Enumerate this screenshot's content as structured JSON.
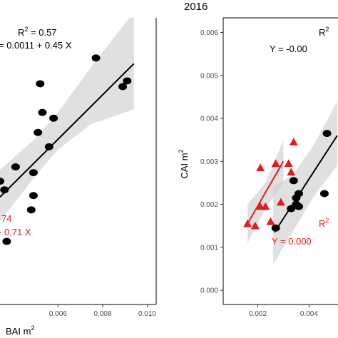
{
  "chart_data": [
    {
      "type": "scatter",
      "title": "",
      "xlabel": "BAI m",
      "xlabel_sup": "2",
      "ylabel": "",
      "x_ticks": [
        {
          "value": 0.006,
          "label": "0.006"
        },
        {
          "value": 0.008,
          "label": "0.008"
        },
        {
          "value": 0.01,
          "label": "0.010"
        }
      ],
      "xlim": [
        0.0034,
        0.0104
      ],
      "ylim": [
        0.0,
        1.0
      ],
      "grid": false,
      "colors": {
        "black_series": "#000000",
        "red_series": "#e41a1c",
        "band": "#cccccc"
      },
      "annotations": {
        "black_r2_prefix": "R",
        "black_r2_sup": "2",
        "black_r2_value": " = 0.57",
        "black_equation": "= 0.0011 + 0.45 X",
        "red_r2_fragment": "74",
        "red_equation": "- 0.71 X"
      },
      "series": [
        {
          "marker": "circle",
          "color": "#000000",
          "points": [
            {
              "x": 0.0034,
              "y": 0.43
            },
            {
              "x": 0.0036,
              "y": 0.4
            },
            {
              "x": 0.0037,
              "y": 0.22
            },
            {
              "x": 0.0041,
              "y": 0.48
            },
            {
              "x": 0.0049,
              "y": 0.46
            },
            {
              "x": 0.0048,
              "y": 0.33
            },
            {
              "x": 0.0049,
              "y": 0.38
            },
            {
              "x": 0.0051,
              "y": 0.6
            },
            {
              "x": 0.0052,
              "y": 0.77
            },
            {
              "x": 0.0053,
              "y": 0.67
            },
            {
              "x": 0.0056,
              "y": 0.55
            },
            {
              "x": 0.0058,
              "y": 0.65
            },
            {
              "x": 0.0077,
              "y": 0.86
            },
            {
              "x": 0.0089,
              "y": 0.76
            },
            {
              "x": 0.0091,
              "y": 0.78
            }
          ],
          "fit": {
            "x0": 0.0034,
            "y0": 0.375,
            "x1": 0.0094,
            "y1": 0.84
          },
          "band": {
            "upper": [
              {
                "x": 0.0034,
                "y": 0.47
              },
              {
                "x": 0.005,
                "y": 0.58
              },
              {
                "x": 0.006,
                "y": 0.67
              },
              {
                "x": 0.0075,
                "y": 0.83
              },
              {
                "x": 0.0094,
                "y": 1.02
              }
            ],
            "lower": [
              {
                "x": 0.0034,
                "y": 0.29
              },
              {
                "x": 0.005,
                "y": 0.45
              },
              {
                "x": 0.006,
                "y": 0.54
              },
              {
                "x": 0.0075,
                "y": 0.63
              },
              {
                "x": 0.0094,
                "y": 0.68
              }
            ]
          }
        }
      ]
    },
    {
      "type": "scatter",
      "title": "2016",
      "xlabel": "",
      "ylabel": "CAI m",
      "ylabel_sup": "2",
      "x_ticks": [
        {
          "value": 0.002,
          "label": "0.002"
        },
        {
          "value": 0.004,
          "label": "0.004"
        }
      ],
      "y_ticks": [
        {
          "value": 0.0,
          "label": "0.000"
        },
        {
          "value": 0.001,
          "label": "0.001"
        },
        {
          "value": 0.002,
          "label": "0.002"
        },
        {
          "value": 0.003,
          "label": "0.003"
        },
        {
          "value": 0.004,
          "label": "0.004"
        },
        {
          "value": 0.005,
          "label": "0.005"
        },
        {
          "value": 0.006,
          "label": "0.006"
        }
      ],
      "xlim": [
        0.00065,
        0.00513
      ],
      "ylim": [
        -0.00033,
        0.00634
      ],
      "grid": false,
      "colors": {
        "black_series": "#000000",
        "red_series": "#e41a1c",
        "band": "#cccccc"
      },
      "annotations": {
        "black_r2_prefix": "R",
        "black_r2_sup": "2",
        "black_equation": "Y = -0.00",
        "red_r2_prefix": "R",
        "red_r2_sup": "2",
        "red_equation": "Y = 0.000"
      },
      "series": [
        {
          "marker": "circle",
          "color": "#000000",
          "points": [
            {
              "x": 0.0027,
              "y": 0.00145
            },
            {
              "x": 0.0033,
              "y": 0.0019
            },
            {
              "x": 0.0035,
              "y": 0.002
            },
            {
              "x": 0.0036,
              "y": 0.00195
            },
            {
              "x": 0.0035,
              "y": 0.00215
            },
            {
              "x": 0.0034,
              "y": 0.00255
            },
            {
              "x": 0.0036,
              "y": 0.00225
            },
            {
              "x": 0.0046,
              "y": 0.00225
            },
            {
              "x": 0.0047,
              "y": 0.00365
            }
          ],
          "fit": {
            "x0": 0.00265,
            "y0": 0.00135,
            "x1": 0.0051,
            "y1": 0.0036
          },
          "band": {
            "upper": [
              {
                "x": 0.0026,
                "y": 0.0024
              },
              {
                "x": 0.0034,
                "y": 0.0027
              },
              {
                "x": 0.0042,
                "y": 0.0034
              },
              {
                "x": 0.0051,
                "y": 0.0044
              }
            ],
            "lower": [
              {
                "x": 0.0026,
                "y": 0.0006
              },
              {
                "x": 0.0034,
                "y": 0.0014
              },
              {
                "x": 0.0042,
                "y": 0.0022
              },
              {
                "x": 0.0051,
                "y": 0.0029
              }
            ]
          }
        },
        {
          "marker": "triangle",
          "color": "#e41a1c",
          "points": [
            {
              "x": 0.0016,
              "y": 0.00155
            },
            {
              "x": 0.0019,
              "y": 0.0015
            },
            {
              "x": 0.0021,
              "y": 0.00195
            },
            {
              "x": 0.0023,
              "y": 0.00195
            },
            {
              "x": 0.0025,
              "y": 0.0016
            },
            {
              "x": 0.0029,
              "y": 0.00205
            },
            {
              "x": 0.0021,
              "y": 0.00285
            },
            {
              "x": 0.0027,
              "y": 0.00295
            },
            {
              "x": 0.0032,
              "y": 0.00295
            },
            {
              "x": 0.0033,
              "y": 0.00275
            },
            {
              "x": 0.0034,
              "y": 0.00345
            }
          ],
          "fit": {
            "x0": 0.0016,
            "y0": 0.00155,
            "x1": 0.003,
            "y1": 0.003
          },
          "band": {
            "upper": [
              {
                "x": 0.0016,
                "y": 0.002
              },
              {
                "x": 0.0023,
                "y": 0.0025
              },
              {
                "x": 0.003,
                "y": 0.0035
              }
            ],
            "lower": [
              {
                "x": 0.0016,
                "y": 0.0011
              },
              {
                "x": 0.0023,
                "y": 0.0019
              },
              {
                "x": 0.003,
                "y": 0.0025
              }
            ]
          }
        }
      ]
    }
  ]
}
